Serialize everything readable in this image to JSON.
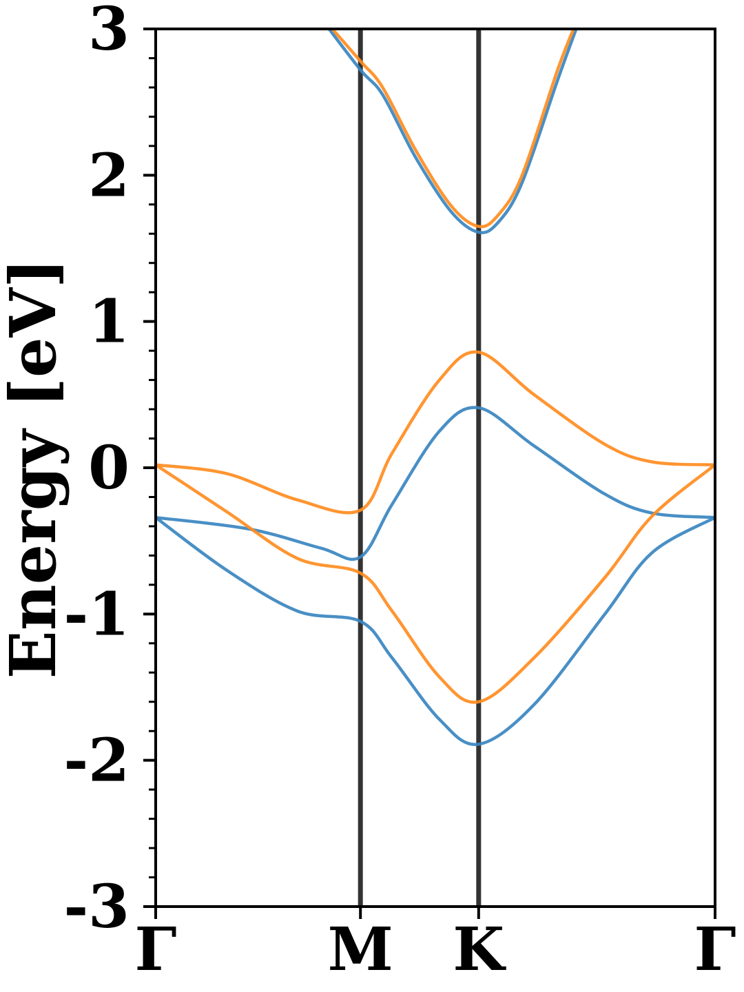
{
  "chart_data": {
    "type": "line",
    "title": "",
    "xlabel": "",
    "ylabel": "Energy [eV]",
    "ylim": [
      -3,
      3
    ],
    "yticks": [
      "3",
      "2",
      "1",
      "0",
      "-1",
      "-2",
      "-3"
    ],
    "ytick_values": [
      3,
      2,
      1,
      0,
      -1,
      -2,
      -3
    ],
    "minor_ytick_step": 0.2,
    "x_path_nodes": [
      {
        "label": "Γ",
        "x": 0.0
      },
      {
        "label": "M",
        "x": 0.866
      },
      {
        "label": "K",
        "x": 1.366
      },
      {
        "label": "Γ",
        "x": 2.366
      }
    ],
    "xlim": [
      0,
      2.366
    ],
    "grid": false,
    "legend": "none",
    "colors": {
      "series_a": "#3a86c0",
      "series_b": "#ff8c1f",
      "vline": "#333333"
    },
    "series": [
      {
        "color": "#3a86c0",
        "points": [
          [
            0,
            -0.34
          ],
          [
            0.3,
            -0.7
          ],
          [
            0.6,
            -0.98
          ],
          [
            0.866,
            -1.05
          ],
          [
            1.0,
            -1.3
          ],
          [
            1.2,
            -1.72
          ],
          [
            1.366,
            -1.89
          ],
          [
            1.6,
            -1.62
          ],
          [
            1.9,
            -1.0
          ],
          [
            2.1,
            -0.58
          ],
          [
            2.366,
            -0.34
          ]
        ]
      },
      {
        "color": "#3a86c0",
        "points": [
          [
            0,
            -0.34
          ],
          [
            0.4,
            -0.42
          ],
          [
            0.7,
            -0.55
          ],
          [
            0.866,
            -0.61
          ],
          [
            1.0,
            -0.25
          ],
          [
            1.2,
            0.25
          ],
          [
            1.366,
            0.41
          ],
          [
            1.6,
            0.15
          ],
          [
            1.9,
            -0.18
          ],
          [
            2.1,
            -0.31
          ],
          [
            2.366,
            -0.34
          ]
        ]
      },
      {
        "color": "#ff8c1f",
        "points": [
          [
            0,
            0.02
          ],
          [
            0.3,
            -0.3
          ],
          [
            0.6,
            -0.62
          ],
          [
            0.866,
            -0.72
          ],
          [
            1.0,
            -0.98
          ],
          [
            1.2,
            -1.43
          ],
          [
            1.366,
            -1.6
          ],
          [
            1.6,
            -1.3
          ],
          [
            1.9,
            -0.75
          ],
          [
            2.1,
            -0.33
          ],
          [
            2.366,
            0.02
          ]
        ]
      },
      {
        "color": "#ff8c1f",
        "points": [
          [
            0,
            0.02
          ],
          [
            0.3,
            -0.04
          ],
          [
            0.6,
            -0.22
          ],
          [
            0.866,
            -0.29
          ],
          [
            1.0,
            0.1
          ],
          [
            1.2,
            0.6
          ],
          [
            1.366,
            0.79
          ],
          [
            1.6,
            0.5
          ],
          [
            1.9,
            0.16
          ],
          [
            2.1,
            0.04
          ],
          [
            2.366,
            0.02
          ]
        ]
      },
      {
        "color": "#3a86c0",
        "points": [
          [
            0.71,
            3.05
          ],
          [
            0.866,
            2.72
          ],
          [
            0.96,
            2.55
          ],
          [
            1.1,
            2.12
          ],
          [
            1.25,
            1.75
          ],
          [
            1.366,
            1.61
          ],
          [
            1.45,
            1.68
          ],
          [
            1.55,
            1.95
          ],
          [
            1.7,
            2.65
          ],
          [
            1.79,
            3.05
          ]
        ]
      },
      {
        "color": "#ff8c1f",
        "points": [
          [
            0.72,
            3.05
          ],
          [
            0.866,
            2.78
          ],
          [
            0.96,
            2.6
          ],
          [
            1.1,
            2.17
          ],
          [
            1.25,
            1.79
          ],
          [
            1.366,
            1.65
          ],
          [
            1.45,
            1.73
          ],
          [
            1.55,
            2.0
          ],
          [
            1.7,
            2.72
          ],
          [
            1.78,
            3.05
          ]
        ]
      }
    ]
  }
}
